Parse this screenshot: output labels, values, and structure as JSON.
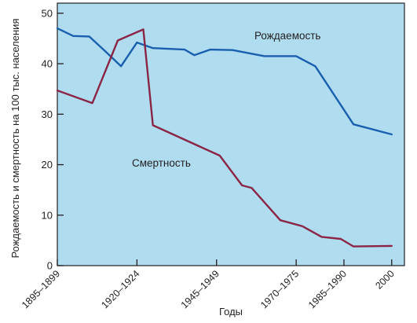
{
  "chart_data": {
    "type": "line",
    "title": "",
    "xlabel": "Годы",
    "ylabel": "Рождаемость и смертность на 100 тыс. населения",
    "xlim": [
      1895,
      2004
    ],
    "ylim": [
      0,
      52
    ],
    "y_ticks": [
      0,
      10,
      20,
      30,
      40,
      50
    ],
    "x_ticks": [
      {
        "x": 1895,
        "label": "1895–1899"
      },
      {
        "x": 1920,
        "label": "1920–1924"
      },
      {
        "x": 1945,
        "label": "1945–1949"
      },
      {
        "x": 1970,
        "label": "1970–1975"
      },
      {
        "x": 1985,
        "label": "1985–1990"
      },
      {
        "x": 2000,
        "label": "2000"
      }
    ],
    "grid": false,
    "colors": {
      "plot_bg": "#b0dcf0",
      "birth": "#1a5fae",
      "death": "#8b2545",
      "axis": "#231f20"
    },
    "series": [
      {
        "name": "Рождаемость",
        "color": "#1a5fae",
        "points": [
          [
            1895,
            47
          ],
          [
            1900,
            45.5
          ],
          [
            1905,
            45.4
          ],
          [
            1910,
            42.5
          ],
          [
            1915,
            39.5
          ],
          [
            1920,
            44.2
          ],
          [
            1925,
            43.1
          ],
          [
            1935,
            42.8
          ],
          [
            1938,
            41.7
          ],
          [
            1943,
            42.8
          ],
          [
            1950,
            42.7
          ],
          [
            1960,
            41.5
          ],
          [
            1963,
            41.5
          ],
          [
            1970,
            41.5
          ],
          [
            1976,
            39.5
          ],
          [
            1988,
            28
          ],
          [
            2000,
            26
          ]
        ]
      },
      {
        "name": "Смертность",
        "color": "#8b2545",
        "points": [
          [
            1895,
            34.7
          ],
          [
            1906,
            32.2
          ],
          [
            1914,
            44.6
          ],
          [
            1922,
            46.8
          ],
          [
            1925,
            27.8
          ],
          [
            1946,
            21.8
          ],
          [
            1953,
            15.9
          ],
          [
            1956,
            15.4
          ],
          [
            1965,
            9
          ],
          [
            1972,
            7.8
          ],
          [
            1978,
            5.7
          ],
          [
            1984,
            5.3
          ],
          [
            1988,
            3.8
          ],
          [
            2000,
            3.9
          ]
        ]
      }
    ]
  }
}
